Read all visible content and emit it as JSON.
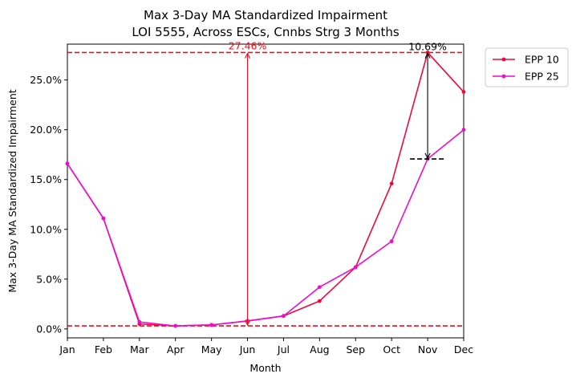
{
  "chart_data": {
    "type": "line",
    "title_line1": "Max 3-Day MA Standardized Impairment",
    "title_line2": "LOI 5555, Across ESCs, Cnnbs Strg 3 Months",
    "xlabel": "Month",
    "ylabel": "Max 3-Day MA Standardized Impairment",
    "categories": [
      "Jan",
      "Feb",
      "Mar",
      "Apr",
      "May",
      "Jun",
      "Jul",
      "Aug",
      "Sep",
      "Oct",
      "Nov",
      "Dec"
    ],
    "ylim": [
      -0.9,
      28.6
    ],
    "yticks": [
      0,
      5,
      10,
      15,
      20,
      25
    ],
    "ytick_labels": [
      "0.0%",
      "5.0%",
      "10.0%",
      "15.0%",
      "20.0%",
      "25.0%"
    ],
    "grid": false,
    "legend_position": "outside-top-right",
    "series": [
      {
        "name": "EPP 10",
        "color": "#f0083c",
        "values": [
          16.6,
          11.1,
          0.5,
          0.3,
          0.4,
          0.8,
          1.3,
          2.8,
          6.2,
          14.6,
          27.76,
          23.8
        ]
      },
      {
        "name": "EPP 25",
        "color": "#f00ccf",
        "values": [
          16.6,
          11.1,
          0.7,
          0.3,
          0.4,
          0.8,
          1.3,
          4.2,
          6.2,
          8.8,
          17.07,
          20.0
        ]
      }
    ],
    "reference_lines": {
      "color": "#e8101c",
      "max_y": 27.76,
      "min_y": 0.3
    },
    "annotations": {
      "range_label": "27.46%",
      "range_x_index": 5,
      "gap_label": "10.69%",
      "gap_x_index": 10,
      "gap_top_y": 27.76,
      "gap_bottom_y": 17.07
    }
  }
}
